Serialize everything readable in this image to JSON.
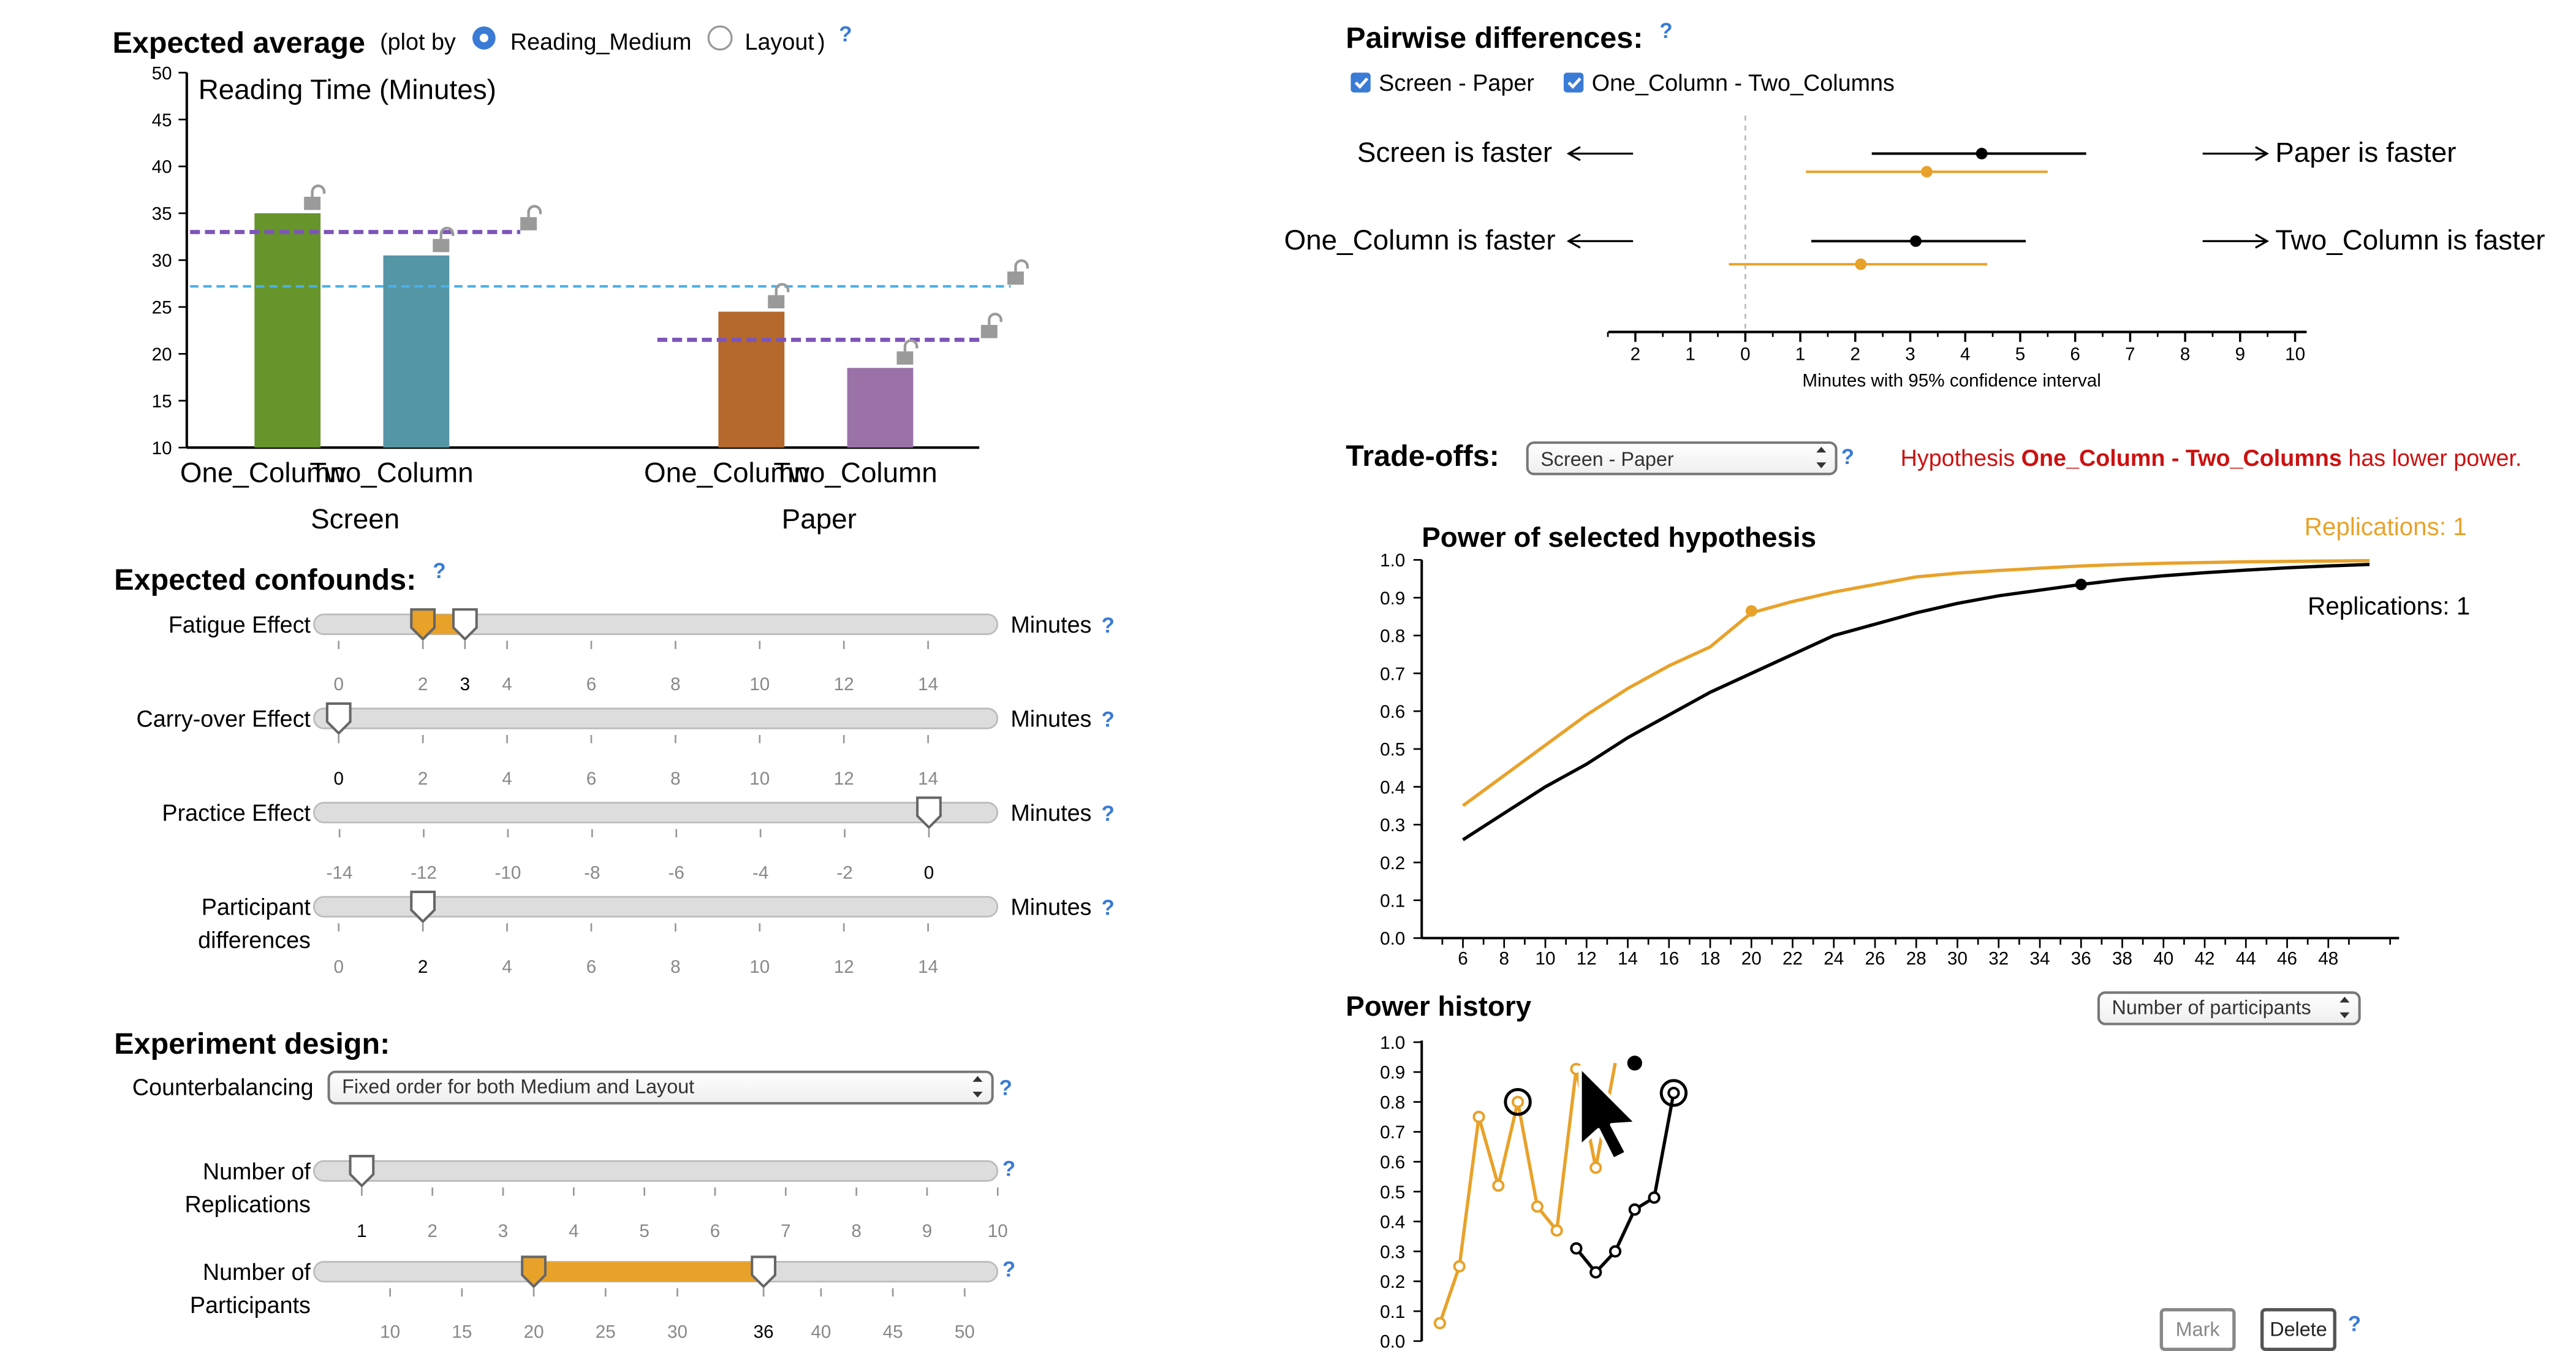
{
  "colors": {
    "accent": "#e8a22a",
    "grey": "#9a9a9a",
    "track": "#dddddd",
    "help": "#3a7bd5",
    "warning": "#cc1111",
    "one_col_screen": "#67952b",
    "two_col_screen": "#5596a6",
    "one_col_paper": "#b5692c",
    "two_col_paper": "#9a72a8",
    "purple_dash": "#7d55b8",
    "blue_dash": "#4ab0e8",
    "black": "#000000"
  },
  "expected_average": {
    "title": "Expected average",
    "plot_by_prefix": "(plot by",
    "plot_by_suffix": ")",
    "options": [
      "Reading_Medium",
      "Layout"
    ],
    "selected": "Reading_Medium",
    "help": "?",
    "chart_title": "Reading Time (Minutes)",
    "ylim": [
      10,
      50
    ],
    "yticks": [
      "10",
      "15",
      "20",
      "25",
      "30",
      "35",
      "40",
      "45",
      "50"
    ],
    "groups": [
      "Screen",
      "Paper"
    ],
    "bar_labels": [
      "One_Column",
      "Two_Column",
      "One_Column",
      "Two_Column"
    ],
    "bar_values": [
      35,
      30.5,
      24.5,
      18.5
    ],
    "group_means": [
      33,
      21.5
    ],
    "grand_mean": 27.2
  },
  "confounds": {
    "title": "Expected confounds:",
    "help": "?",
    "unit": "Minutes",
    "sliders": [
      {
        "label": [
          "Fatigue Effect"
        ],
        "ticks": [
          "0",
          "2",
          "3",
          "4",
          "6",
          "8",
          "10",
          "12",
          "14"
        ],
        "bold": "3",
        "min": 0,
        "max": 15,
        "low": 2,
        "value": 3
      },
      {
        "label": [
          "Carry-over Effect"
        ],
        "ticks": [
          "0",
          "2",
          "4",
          "6",
          "8",
          "10",
          "12",
          "14"
        ],
        "bold": "0",
        "min": 0,
        "max": 15,
        "value": 0
      },
      {
        "label": [
          "Practice Effect"
        ],
        "ticks": [
          "-14",
          "-12",
          "-10",
          "-8",
          "-6",
          "-4",
          "-2",
          "0"
        ],
        "bold": "0",
        "min": -15,
        "max": 0,
        "value": 0
      },
      {
        "label": [
          "Participant",
          "differences"
        ],
        "ticks": [
          "0",
          "2",
          "4",
          "6",
          "8",
          "10",
          "12",
          "14"
        ],
        "bold": "2",
        "min": 0,
        "max": 15,
        "value": 2
      }
    ]
  },
  "design": {
    "title": "Experiment design:",
    "counterbalancing_label": "Counterbalancing",
    "counterbalancing_value": "Fixed order for both Medium and Layout",
    "help": "?",
    "replications": {
      "label": [
        "Number of",
        "Replications"
      ],
      "ticks": [
        "1",
        "2",
        "3",
        "4",
        "5",
        "6",
        "7",
        "8",
        "9",
        "10"
      ],
      "bold": "1",
      "min": 0.65,
      "max": 10.4,
      "value": 1
    },
    "participants": {
      "label": [
        "Number of",
        "Participants"
      ],
      "ticks": [
        "10",
        "15",
        "20",
        "25",
        "30",
        "36",
        "40",
        "45",
        "50"
      ],
      "bold": "36",
      "min": 5.5,
      "max": 52,
      "low": 20,
      "value": 36
    }
  },
  "pairwise": {
    "title": "Pairwise differences:",
    "help": "?",
    "checks": [
      "Screen - Paper",
      "One_Column - Two_Columns"
    ],
    "rows": [
      {
        "left": "Screen is faster",
        "right": "Paper is faster"
      },
      {
        "left": "One_Column is faster",
        "right": "Two_Column is faster"
      }
    ],
    "axis_label": "Minutes with 95% confidence interval",
    "ticks": [
      "2",
      "1",
      "0",
      "1",
      "2",
      "3",
      "4",
      "5",
      "6",
      "7",
      "8",
      "9",
      "10"
    ],
    "estimates": [
      {
        "series": "black",
        "mean": 4.3,
        "low": 2.3,
        "high": 6.2
      },
      {
        "series": "orange",
        "mean": 3.3,
        "low": 1.1,
        "high": 5.5
      },
      {
        "series": "black",
        "mean": 3.1,
        "low": 1.2,
        "high": 5.1
      },
      {
        "series": "orange",
        "mean": 2.1,
        "low": -0.3,
        "high": 4.4
      }
    ]
  },
  "tradeoffs": {
    "title": "Trade-offs:",
    "select_value": "Screen - Paper",
    "help": "?",
    "warning_prefix": "Hypothesis ",
    "warning_bold": "One_Column - Two_Columns",
    "warning_suffix": " has lower power."
  },
  "chart_data": [
    {
      "type": "line",
      "title": "Power of selected hypothesis",
      "xlabel": "",
      "ylabel": "",
      "xlim": [
        4,
        52
      ],
      "ylim": [
        0,
        1
      ],
      "x_ticks": [
        "6",
        "8",
        "10",
        "12",
        "14",
        "16",
        "18",
        "20",
        "22",
        "24",
        "26",
        "28",
        "30",
        "32",
        "34",
        "36",
        "38",
        "40",
        "42",
        "44",
        "46",
        "48"
      ],
      "y_ticks": [
        "0.0",
        "0.1",
        "0.2",
        "0.3",
        "0.4",
        "0.5",
        "0.6",
        "0.7",
        "0.8",
        "0.9",
        "1.0"
      ],
      "series": [
        {
          "name": "Replications: 1",
          "color": "orange",
          "x": [
            6,
            8,
            10,
            12,
            14,
            16,
            18,
            20,
            22,
            24,
            26,
            28,
            30,
            32,
            34,
            36,
            38,
            40,
            42,
            44,
            46,
            48,
            50
          ],
          "y": [
            0.35,
            0.43,
            0.51,
            0.59,
            0.66,
            0.72,
            0.77,
            0.86,
            0.89,
            0.915,
            0.935,
            0.955,
            0.965,
            0.972,
            0.978,
            0.984,
            0.988,
            0.991,
            0.993,
            0.995,
            0.996,
            0.997,
            0.998
          ],
          "marker": {
            "x": 20,
            "y": 0.865
          }
        },
        {
          "name": "Replications: 1",
          "color": "black",
          "x": [
            6,
            8,
            10,
            12,
            14,
            16,
            18,
            20,
            22,
            24,
            26,
            28,
            30,
            32,
            34,
            36,
            38,
            40,
            42,
            44,
            46,
            48,
            50
          ],
          "y": [
            0.26,
            0.33,
            0.4,
            0.46,
            0.53,
            0.59,
            0.65,
            0.7,
            0.75,
            0.8,
            0.83,
            0.86,
            0.885,
            0.905,
            0.92,
            0.935,
            0.948,
            0.958,
            0.966,
            0.973,
            0.979,
            0.984,
            0.988
          ],
          "marker": {
            "x": 36,
            "y": 0.935
          }
        }
      ]
    },
    {
      "type": "line",
      "title": "Power history",
      "xlabel": "",
      "ylabel": "",
      "ylim": [
        0,
        1
      ],
      "y_ticks": [
        "0.0",
        "0.1",
        "0.2",
        "0.3",
        "0.4",
        "0.5",
        "0.6",
        "0.7",
        "0.8",
        "0.9",
        "1.0"
      ],
      "series": [
        {
          "name": "orange",
          "color": "orange",
          "x": [
            1,
            2,
            3,
            4,
            5,
            6,
            7,
            8,
            9,
            10
          ],
          "y": [
            0.06,
            0.25,
            0.75,
            0.52,
            0.8,
            0.45,
            0.37,
            0.91,
            0.58,
            0.93
          ]
        },
        {
          "name": "black",
          "color": "black",
          "x": [
            8,
            9,
            10,
            11,
            12,
            13
          ],
          "y": [
            0.31,
            0.23,
            0.3,
            0.44,
            0.48,
            0.83
          ]
        },
        {
          "name": "current",
          "color": "black",
          "x": [
            11
          ],
          "y": [
            0.93
          ]
        }
      ],
      "marked": [
        {
          "series": "orange",
          "x": 5,
          "y": 0.8
        },
        {
          "series": "black",
          "x": 13,
          "y": 0.83
        }
      ]
    }
  ],
  "power": {
    "chart_title": "Power of selected hypothesis",
    "legend_orange": "Replications: 1",
    "legend_black": "Replications: 1"
  },
  "history": {
    "title": "Power history",
    "select_value": "Number of participants",
    "mark_label": "Mark",
    "delete_label": "Delete",
    "help": "?"
  }
}
